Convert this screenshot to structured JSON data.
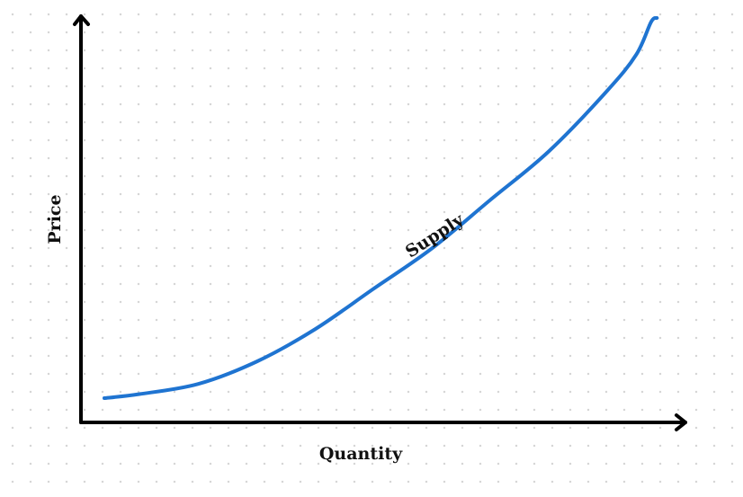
{
  "chart_data": {
    "type": "line",
    "title": "",
    "xlabel": "Quantity",
    "ylabel": "Price",
    "grid": false,
    "xlim": [
      0,
      10
    ],
    "ylim": [
      0,
      10
    ],
    "series": [
      {
        "name": "Supply",
        "color": "#1f74d1",
        "x": [
          0.4,
          1.0,
          2.0,
          3.0,
          4.0,
          5.0,
          6.0,
          7.0,
          8.0,
          9.0,
          9.5,
          9.75,
          9.85
        ],
        "y": [
          0.6,
          0.7,
          0.95,
          1.5,
          2.3,
          3.3,
          4.3,
          5.5,
          6.7,
          8.2,
          9.1,
          9.9,
          10.0
        ]
      }
    ],
    "annotations": [
      {
        "text": "Supply",
        "x": 6.1,
        "y": 4.5,
        "rotation": -33
      }
    ]
  }
}
